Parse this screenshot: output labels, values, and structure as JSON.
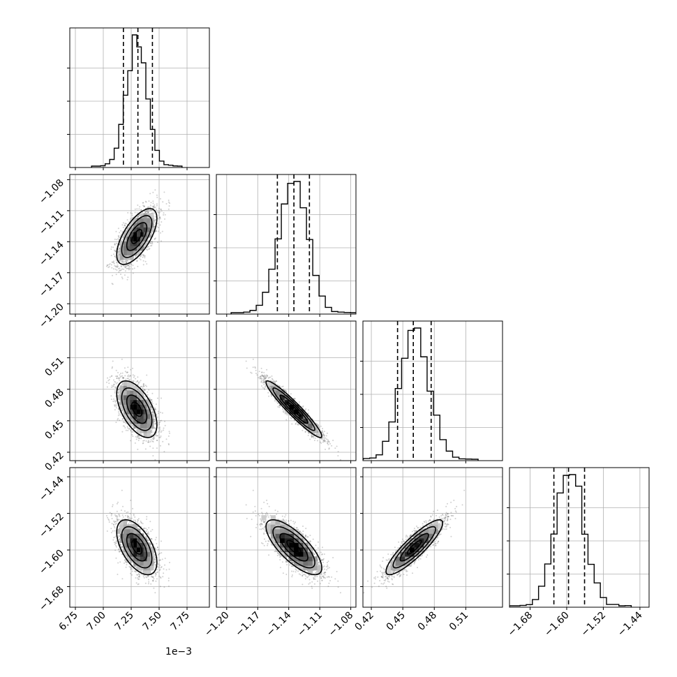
{
  "chart_data": {
    "type": "corner",
    "parameters": 4,
    "scale_label": "1e−3",
    "grid": true,
    "axes": [
      {
        "range": [
          6.7,
          7.95
        ],
        "ticks": [
          6.75,
          7.0,
          7.25,
          7.5,
          7.75
        ],
        "tick_labels": [
          "6.75",
          "7.00",
          "7.25",
          "7.50",
          "7.75"
        ],
        "mean": 7.3,
        "sigma": 0.09,
        "quantiles": [
          7.18,
          7.31,
          7.44
        ]
      },
      {
        "range": [
          -1.21,
          -1.075
        ],
        "ticks": [
          -1.2,
          -1.17,
          -1.14,
          -1.11,
          -1.08
        ],
        "tick_labels": [
          "−1.20",
          "−1.17",
          "−1.14",
          "−1.11",
          "−1.08"
        ],
        "mean": -1.135,
        "sigma": 0.0135,
        "quantiles": [
          -1.151,
          -1.135,
          -1.12
        ]
      },
      {
        "range": [
          0.412,
          0.545
        ],
        "ticks": [
          0.42,
          0.45,
          0.48,
          0.51
        ],
        "tick_labels": [
          "0.42",
          "0.45",
          "0.48",
          "0.51"
        ],
        "mean": 0.461,
        "sigma": 0.0135,
        "quantiles": [
          0.445,
          0.46,
          0.477
        ]
      },
      {
        "range": [
          -1.725,
          -1.42
        ],
        "ticks": [
          -1.68,
          -1.6,
          -1.52,
          -1.44
        ],
        "tick_labels": [
          "−1.68",
          "−1.60",
          "−1.52",
          "−1.44"
        ],
        "mean": -1.594,
        "sigma": 0.03,
        "quantiles": [
          -1.628,
          -1.596,
          -1.561
        ]
      }
    ],
    "correlations": [
      [
        1,
        0.65,
        -0.55,
        -0.55
      ],
      [
        0.65,
        1,
        -0.95,
        -0.75
      ],
      [
        -0.55,
        -0.95,
        1,
        0.88
      ],
      [
        -0.55,
        -0.75,
        0.88,
        1
      ]
    ],
    "colors": {
      "line": "#000000",
      "grid": "#b0b0b0",
      "scatter": "#555555"
    }
  }
}
